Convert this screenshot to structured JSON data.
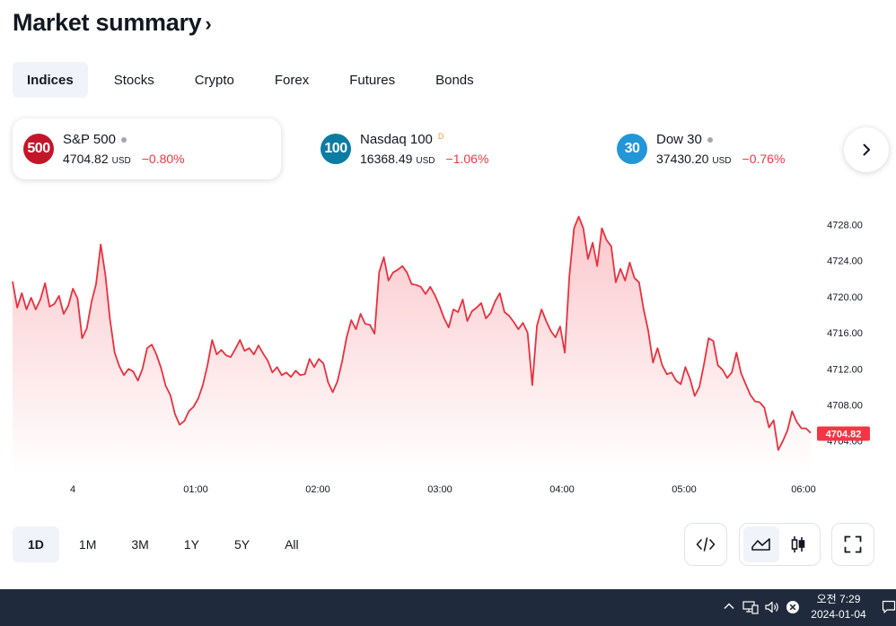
{
  "header": {
    "title": "Market summary",
    "chevron": "›"
  },
  "tabs": [
    {
      "label": "Indices",
      "active": true
    },
    {
      "label": "Stocks"
    },
    {
      "label": "Crypto"
    },
    {
      "label": "Forex"
    },
    {
      "label": "Futures"
    },
    {
      "label": "Bonds"
    }
  ],
  "tickers": [
    {
      "logo_text": "500",
      "logo_color": "#c4162a",
      "name": "S&P 500",
      "status": "closed-dot",
      "price": "4704.82",
      "currency": "USD",
      "change": "−0.80%",
      "selected": true
    },
    {
      "logo_text": "100",
      "logo_color": "#0c7ca3",
      "name": "Nasdaq 100",
      "status_label": "D",
      "price": "16368.49",
      "currency": "USD",
      "change": "−1.06%"
    },
    {
      "logo_text": "30",
      "logo_color": "#2396d8",
      "name": "Dow 30",
      "status": "closed-dot",
      "price": "37430.20",
      "currency": "USD",
      "change": "−0.76%"
    }
  ],
  "next_icon": "chevron-right-icon",
  "colors": {
    "negative": "#f23645",
    "line": "#e8313f",
    "active_tab_bg": "#f0f3fa",
    "taskbar": "#1f2b3c"
  },
  "chart_data": {
    "type": "area",
    "x_tick_labels": [
      "4",
      "01:00",
      "02:00",
      "03:00",
      "04:00",
      "05:00",
      "06:00"
    ],
    "y_tick_labels": [
      "4728.00",
      "4724.00",
      "4720.00",
      "4716.00",
      "4712.00",
      "4708.00",
      "4704.00"
    ],
    "ylim": [
      4702.0,
      4730.0
    ],
    "last_price_label": "4704.82",
    "series": [
      {
        "values": [
          4721.7,
          4718.8,
          4720.4,
          4718.6,
          4719.9,
          4718.6,
          4719.7,
          4721.5,
          4718.9,
          4719.2,
          4720.1,
          4718.1,
          4719.0,
          4720.9,
          4719.8,
          4715.4,
          4716.5,
          4719.4,
          4721.4,
          4725.8,
          4722.4,
          4717.5,
          4713.8,
          4712.3,
          4711.3,
          4712.0,
          4711.7,
          4710.7,
          4712.0,
          4714.3,
          4714.7,
          4713.6,
          4712.1,
          4710.1,
          4709.1,
          4707.0,
          4705.8,
          4706.2,
          4707.3,
          4707.8,
          4708.7,
          4710.2,
          4712.4,
          4715.2,
          4713.6,
          4714.1,
          4713.5,
          4713.3,
          4714.2,
          4715.2,
          4714.0,
          4714.3,
          4713.6,
          4714.6,
          4713.7,
          4712.9,
          4711.6,
          4712.2,
          4711.3,
          4711.6,
          4711.1,
          4711.8,
          4711.3,
          4711.4,
          4713.1,
          4712.2,
          4713.1,
          4712.6,
          4710.5,
          4709.4,
          4710.6,
          4712.8,
          4715.5,
          4717.4,
          4716.4,
          4718.1,
          4717.0,
          4716.9,
          4715.9,
          4722.7,
          4724.4,
          4721.8,
          4722.7,
          4723.0,
          4723.4,
          4722.7,
          4721.4,
          4721.3,
          4721.1,
          4720.3,
          4721.1,
          4720.2,
          4719.0,
          4717.6,
          4716.6,
          4718.6,
          4718.3,
          4719.7,
          4717.3,
          4718.4,
          4718.8,
          4719.3,
          4717.6,
          4718.2,
          4719.5,
          4720.4,
          4718.3,
          4717.9,
          4717.2,
          4716.4,
          4717.1,
          4716.0,
          4710.2,
          4716.8,
          4718.6,
          4717.3,
          4716.2,
          4715.5,
          4716.7,
          4713.8,
          4722.3,
          4727.6,
          4728.9,
          4727.6,
          4724.2,
          4726.0,
          4723.4,
          4727.6,
          4726.3,
          4725.6,
          4721.6,
          4723.1,
          4721.8,
          4723.8,
          4722.1,
          4721.6,
          4718.6,
          4716.2,
          4712.7,
          4714.3,
          4712.4,
          4711.4,
          4711.6,
          4710.7,
          4710.3,
          4712.2,
          4710.9,
          4709.0,
          4710.0,
          4712.5,
          4715.4,
          4715.1,
          4712.4,
          4711.9,
          4711.0,
          4711.6,
          4713.8,
          4711.5,
          4710.3,
          4709.1,
          4708.4,
          4708.3,
          4707.7,
          4705.5,
          4706.3,
          4703.0,
          4704.0,
          4705.2,
          4707.3,
          4706.1,
          4705.4,
          4705.4,
          4704.9
        ]
      }
    ]
  },
  "ranges": [
    {
      "label": "1D",
      "active": true
    },
    {
      "label": "1M"
    },
    {
      "label": "3M"
    },
    {
      "label": "1Y"
    },
    {
      "label": "5Y"
    },
    {
      "label": "All"
    }
  ],
  "taskbar": {
    "time": "오전 7:29",
    "date": "2024-01-04"
  }
}
